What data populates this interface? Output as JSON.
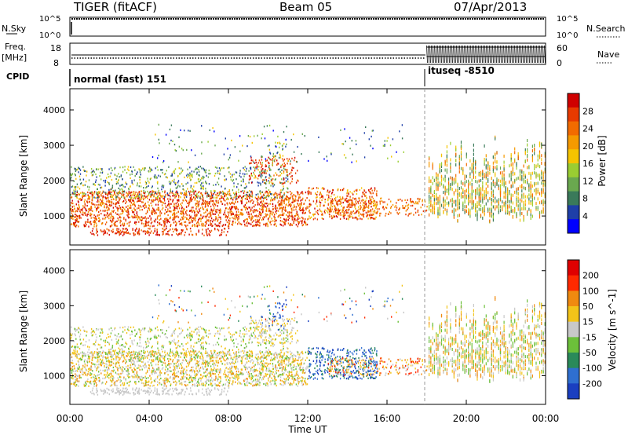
{
  "header": {
    "station": "TIGER (fitACF)",
    "beam": "Beam 05",
    "date": "07/Apr/2013"
  },
  "status_panels": {
    "nsky": {
      "label": "N.Sky",
      "right_label": "N.Search",
      "ticks_left": [
        "10^5",
        "10^0"
      ],
      "ticks_right": [
        "10^5",
        "10^0"
      ]
    },
    "freq": {
      "label_line1": "Freq.",
      "label_line2": "[MHz]",
      "right_label": "Nave",
      "ticks_left": [
        "18",
        "8"
      ],
      "ticks_right": [
        "60",
        "0"
      ]
    },
    "cpid": {
      "label": "CPID",
      "segments": [
        {
          "text": "normal (fast) 151",
          "start_hour": 0
        },
        {
          "text": "ituseq -8510",
          "start_hour": 18
        }
      ]
    }
  },
  "chart_data": [
    {
      "type": "heatmap",
      "title": "",
      "ylabel": "Slant Range [km]",
      "xlabel": "",
      "x_range_hours": [
        0,
        24
      ],
      "ylim": [
        180,
        4600
      ],
      "yticks": [
        "4000",
        "3000",
        "2000",
        "1000"
      ],
      "colorbar": {
        "label": "Power [dB]",
        "ticks": [
          "28",
          "24",
          "20",
          "16",
          "12",
          "8",
          "4"
        ],
        "colors": [
          "#0000ff",
          "#1e3fa8",
          "#3a7a5a",
          "#6aa84f",
          "#9acd32",
          "#f5c400",
          "#f59a00",
          "#f26b00",
          "#e83a00",
          "#d00000"
        ]
      }
    },
    {
      "type": "heatmap",
      "title": "",
      "ylabel": "Slant Range [km]",
      "xlabel": "Time UT",
      "x_range_hours": [
        0,
        24
      ],
      "xticks": [
        "00:00",
        "04:00",
        "08:00",
        "12:00",
        "16:00",
        "20:00",
        "00:00"
      ],
      "ylim": [
        180,
        4600
      ],
      "yticks": [
        "4000",
        "3000",
        "2000",
        "1000"
      ],
      "colorbar": {
        "label": "Velocity [m s^-1]",
        "ticks": [
          "200",
          "100",
          "50",
          "15",
          "-15",
          "-50",
          "-100",
          "-200"
        ],
        "colors": [
          "#1a3fc0",
          "#2f6fd0",
          "#2a8a5a",
          "#6cc03a",
          "#c8c8c8",
          "#f3c419",
          "#f08a10",
          "#ff2a00",
          "#e00000"
        ]
      }
    }
  ]
}
